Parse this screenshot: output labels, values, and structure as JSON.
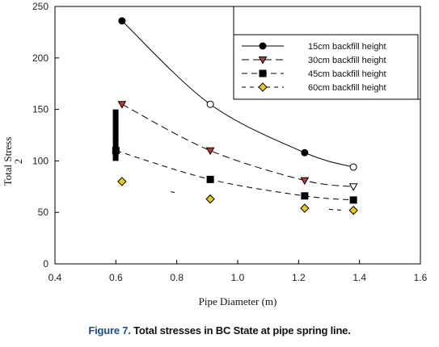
{
  "chart_data": {
    "type": "line",
    "xlabel": "Pipe Diameter (m)",
    "ylabel": "Total Stress",
    "ylabel_extra": "2",
    "xlim": [
      0.4,
      1.6
    ],
    "ylim": [
      0,
      250
    ],
    "x_ticks": [
      "0.4",
      "0.6",
      "0.8",
      "1.0",
      "1.2",
      "1.4",
      "1.6"
    ],
    "y_ticks": [
      "0",
      "50",
      "100",
      "150",
      "200",
      "250"
    ],
    "grid": false,
    "legend_position": "top-right",
    "series": [
      {
        "name": "15cm backfill height",
        "marker": "circle",
        "color": "#000000",
        "points": [
          [
            0.62,
            236
          ],
          [
            0.91,
            155
          ],
          [
            1.22,
            108
          ],
          [
            1.38,
            94
          ]
        ],
        "hollow": [
          false,
          true,
          false,
          true
        ]
      },
      {
        "name": "30cm backfill height",
        "marker": "triangle-down",
        "color": "#c0392b",
        "points": [
          [
            0.62,
            155
          ],
          [
            0.91,
            110
          ],
          [
            1.22,
            81
          ],
          [
            1.38,
            75
          ]
        ],
        "hollow": [
          false,
          false,
          false,
          true
        ]
      },
      {
        "name": "45cm backfill height",
        "marker": "square",
        "color": "#000000",
        "points": [
          [
            0.6,
            110
          ],
          [
            0.91,
            82
          ],
          [
            1.22,
            66
          ],
          [
            1.38,
            62
          ]
        ],
        "hollow": [
          false,
          false,
          false,
          false
        ]
      },
      {
        "name": "60cm backfill height",
        "marker": "diamond",
        "color": "#e8c81e",
        "points": [
          [
            0.62,
            80
          ],
          [
            0.91,
            63
          ],
          [
            1.22,
            54
          ],
          [
            1.38,
            52
          ]
        ],
        "hollow": [
          false,
          false,
          false,
          false
        ]
      }
    ]
  },
  "caption": {
    "figure_number": "Figure 7.",
    "text": " Total stresses in BC State at pipe spring line."
  }
}
